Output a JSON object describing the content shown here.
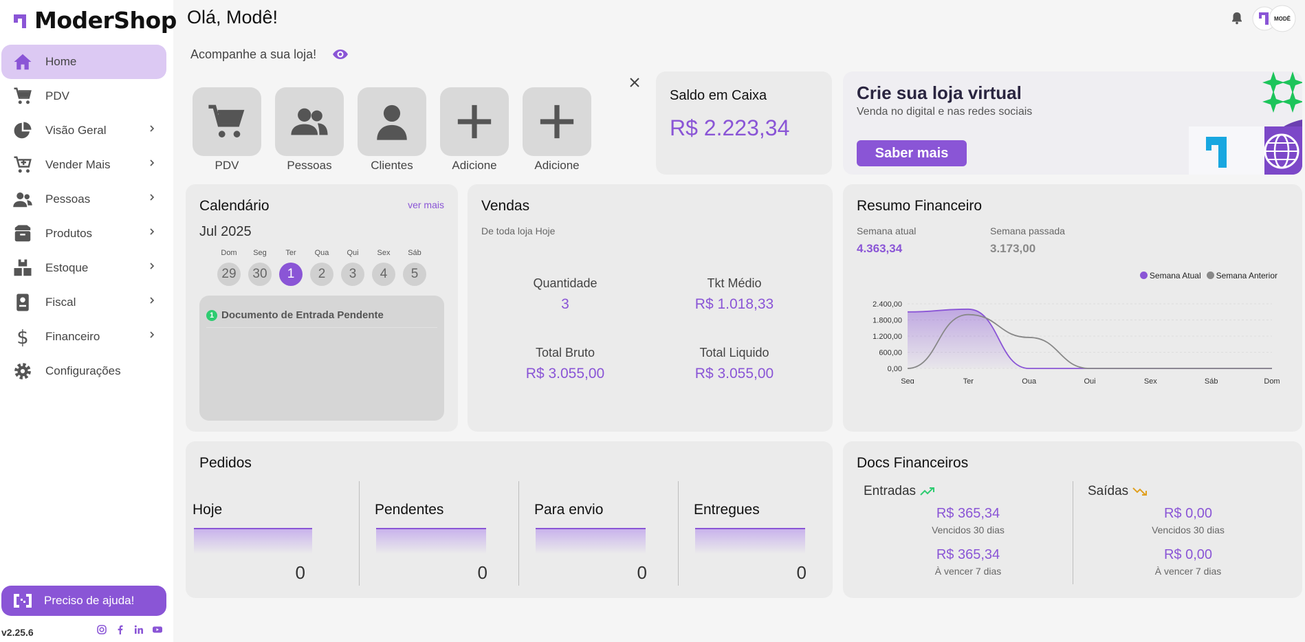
{
  "brand": {
    "name": "ModerShop",
    "color": "#8a55d6"
  },
  "header": {
    "greeting": "Olá, Modê!",
    "subtitle": "Acompanhe a sua loja!",
    "avatar_text": "MODÊ"
  },
  "sidebar": {
    "items": [
      {
        "label": "Home",
        "icon": "home-icon",
        "active": true
      },
      {
        "label": "PDV",
        "icon": "cart-icon"
      },
      {
        "label": "Visão Geral",
        "icon": "pie-chart-icon"
      },
      {
        "label": "Vender Mais",
        "icon": "cart-plus-icon"
      },
      {
        "label": "Pessoas",
        "icon": "people-icon"
      },
      {
        "label": "Produtos",
        "icon": "box-icon"
      },
      {
        "label": "Estoque",
        "icon": "stock-icon"
      },
      {
        "label": "Fiscal",
        "icon": "badge-icon"
      },
      {
        "label": "Financeiro",
        "icon": "dollar-icon"
      },
      {
        "label": "Configurações",
        "icon": "gear-icon"
      }
    ],
    "help_label": "Preciso de ajuda!",
    "version": "v2.25.6"
  },
  "shortcuts": [
    {
      "label": "PDV",
      "icon": "cart-icon"
    },
    {
      "label": "Pessoas",
      "icon": "people-icon"
    },
    {
      "label": "Clientes",
      "icon": "person-icon"
    },
    {
      "label": "Adicione",
      "icon": "plus-icon"
    },
    {
      "label": "Adicione",
      "icon": "plus-icon"
    }
  ],
  "saldo": {
    "title": "Saldo em Caixa",
    "value": "R$ 2.223,34"
  },
  "banner": {
    "title": "Crie sua loja virtual",
    "subtitle": "Venda no digital e nas redes sociais",
    "button": "Saber mais"
  },
  "calendar": {
    "title": "Calendário",
    "more": "ver mais",
    "month": "Jul 2025",
    "days": [
      {
        "dow": "Dom",
        "num": "29"
      },
      {
        "dow": "Seg",
        "num": "30"
      },
      {
        "dow": "Ter",
        "num": "1",
        "today": true
      },
      {
        "dow": "Qua",
        "num": "2"
      },
      {
        "dow": "Qui",
        "num": "3"
      },
      {
        "dow": "Sex",
        "num": "4"
      },
      {
        "dow": "Sáb",
        "num": "5"
      }
    ],
    "events": [
      {
        "count": "1",
        "label": "Documento de Entrada Pendente"
      }
    ]
  },
  "vendas": {
    "title": "Vendas",
    "subtitle": "De toda loja Hoje",
    "quantidade_label": "Quantidade",
    "quantidade": "3",
    "ticket_label": "Tkt Médio",
    "ticket": "R$ 1.018,33",
    "bruto_label": "Total Bruto",
    "bruto": "R$ 3.055,00",
    "liquido_label": "Total Liquido",
    "liquido": "R$ 3.055,00"
  },
  "resumo": {
    "title": "Resumo Financeiro",
    "atual_label": "Semana atual",
    "atual_value": "4.363,34",
    "passada_label": "Semana passada",
    "passada_value": "3.173,00"
  },
  "chart_data": {
    "type": "area",
    "categories": [
      "Seg",
      "Ter",
      "Qua",
      "Qui",
      "Sex",
      "Sáb",
      "Dom"
    ],
    "y_ticks": [
      "0,00",
      "600,00",
      "1.200,00",
      "1.800,00",
      "2.400,00"
    ],
    "ylim": [
      0,
      2400
    ],
    "legend_position": "top-right",
    "series": [
      {
        "name": "Semana Atual",
        "color": "#8a55d6",
        "values": [
          2100,
          2200,
          0,
          0,
          0,
          0,
          0
        ]
      },
      {
        "name": "Semana Anterior",
        "color": "#888888",
        "values": [
          0,
          2000,
          1150,
          0,
          0,
          0,
          0
        ]
      }
    ]
  },
  "pedidos": {
    "title": "Pedidos",
    "columns": [
      {
        "label": "Hoje",
        "value": "0"
      },
      {
        "label": "Pendentes",
        "value": "0"
      },
      {
        "label": "Para envio",
        "value": "0"
      },
      {
        "label": "Entregues",
        "value": "0"
      }
    ]
  },
  "docs": {
    "title": "Docs Financeiros",
    "entradas_label": "Entradas",
    "saidas_label": "Saídas",
    "entradas_vencidos": "R$ 365,34",
    "entradas_vencer": "R$ 365,34",
    "saidas_vencidos": "R$ 0,00",
    "saidas_vencer": "R$ 0,00",
    "vencidos_caption": "Vencidos 30 dias",
    "vencer_caption": "À vencer 7 dias"
  }
}
